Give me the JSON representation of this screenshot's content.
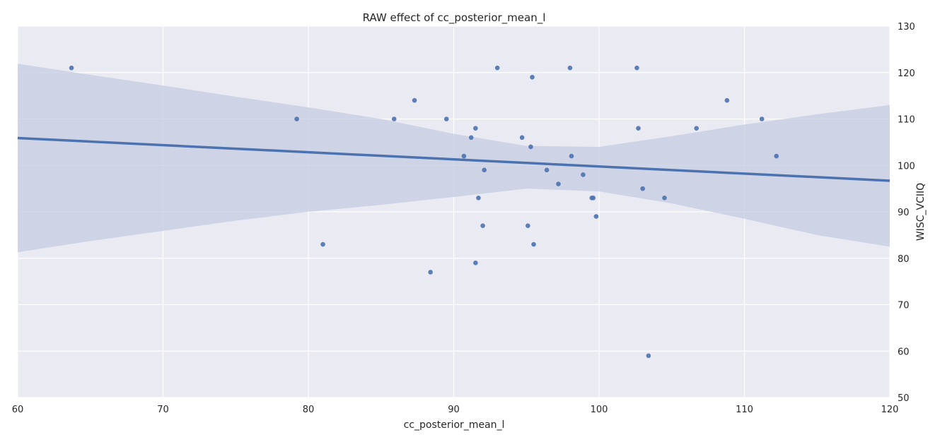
{
  "chart_data": {
    "type": "scatter",
    "title": "RAW effect of cc_posterior_mean_l",
    "xlabel": "cc_posterior_mean_l",
    "ylabel": "WISC_VCIIQ",
    "xlim": [
      60,
      120
    ],
    "ylim": [
      50,
      130
    ],
    "xticks": [
      "60",
      "70",
      "80",
      "90",
      "100",
      "110",
      "120"
    ],
    "yticks": [
      "50",
      "60",
      "70",
      "80",
      "90",
      "100",
      "110",
      "120",
      "130"
    ],
    "grid": true,
    "y_axis_side": "right",
    "colors": {
      "background": "#eaeaf2",
      "grid": "#ffffff",
      "point": "#4c72b0",
      "line": "#4c72b0",
      "band": "#c4cce2"
    },
    "points": [
      [
        63.7,
        121
      ],
      [
        79.2,
        110
      ],
      [
        81.0,
        83
      ],
      [
        85.9,
        110
      ],
      [
        87.3,
        114
      ],
      [
        88.4,
        77
      ],
      [
        89.5,
        110
      ],
      [
        90.7,
        102
      ],
      [
        91.2,
        106
      ],
      [
        91.5,
        108
      ],
      [
        91.5,
        79
      ],
      [
        91.7,
        93
      ],
      [
        92.0,
        87
      ],
      [
        92.1,
        99
      ],
      [
        93.0,
        121
      ],
      [
        94.7,
        106
      ],
      [
        95.1,
        87
      ],
      [
        95.3,
        104
      ],
      [
        95.4,
        119
      ],
      [
        95.5,
        83
      ],
      [
        96.4,
        99
      ],
      [
        97.2,
        96
      ],
      [
        98.0,
        121
      ],
      [
        98.1,
        102
      ],
      [
        98.9,
        98
      ],
      [
        99.5,
        93
      ],
      [
        99.6,
        93
      ],
      [
        99.8,
        89
      ],
      [
        102.6,
        121
      ],
      [
        102.7,
        108
      ],
      [
        103.0,
        95
      ],
      [
        103.4,
        59
      ],
      [
        104.5,
        93
      ],
      [
        106.7,
        108
      ],
      [
        108.8,
        114
      ],
      [
        111.2,
        110
      ],
      [
        112.2,
        102
      ]
    ],
    "regression_line": {
      "x": [
        60,
        120
      ],
      "y": [
        105.9,
        96.7
      ]
    },
    "confidence_band": {
      "x": [
        60,
        65,
        70,
        75,
        80,
        85,
        90,
        95,
        100,
        105,
        110,
        115,
        120
      ],
      "upper": [
        121.9,
        119.5,
        117.2,
        114.8,
        112.5,
        110.0,
        106.8,
        104.2,
        104.0,
        106.3,
        108.8,
        111.0,
        113.0
      ],
      "lower": [
        81.3,
        83.7,
        85.9,
        88.1,
        90.0,
        91.5,
        93.2,
        95.0,
        94.4,
        91.8,
        88.5,
        85.0,
        82.5
      ]
    }
  }
}
